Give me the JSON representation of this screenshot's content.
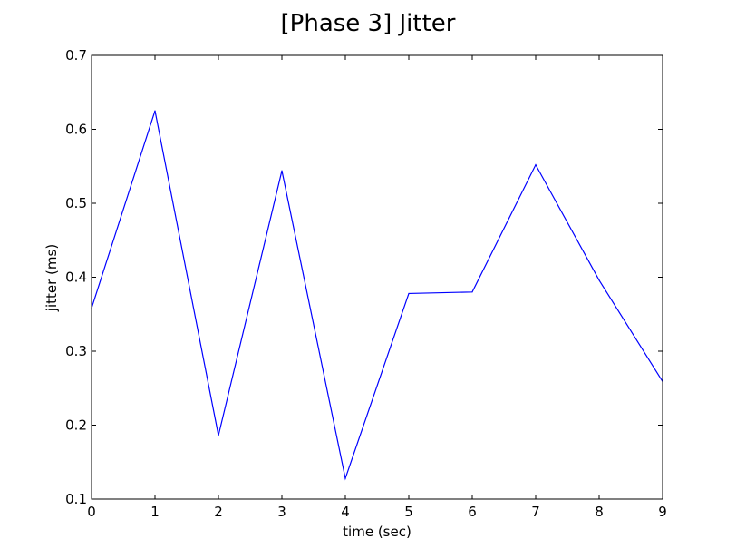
{
  "chart_data": {
    "type": "line",
    "title": "[Phase 3] Jitter",
    "xlabel": "time (sec)",
    "ylabel": "jitter (ms)",
    "xlim": [
      0,
      9
    ],
    "ylim": [
      0.1,
      0.7
    ],
    "x_ticks": [
      0,
      1,
      2,
      3,
      4,
      5,
      6,
      7,
      8,
      9
    ],
    "y_ticks": [
      0.1,
      0.2,
      0.3,
      0.4,
      0.5,
      0.6,
      0.7
    ],
    "y_tick_labels": [
      "0.1",
      "0.2",
      "0.3",
      "0.4",
      "0.5",
      "0.6",
      "0.7"
    ],
    "x_tick_labels": [
      "0",
      "1",
      "2",
      "3",
      "4",
      "5",
      "6",
      "7",
      "8",
      "9"
    ],
    "grid": false,
    "legend": false,
    "series": [
      {
        "color": "#0000ff",
        "x": [
          0,
          1,
          2,
          3,
          4,
          5,
          6,
          7,
          8,
          9
        ],
        "y": [
          0.358,
          0.625,
          0.186,
          0.544,
          0.128,
          0.378,
          0.38,
          0.552,
          0.396,
          0.259
        ]
      }
    ]
  }
}
